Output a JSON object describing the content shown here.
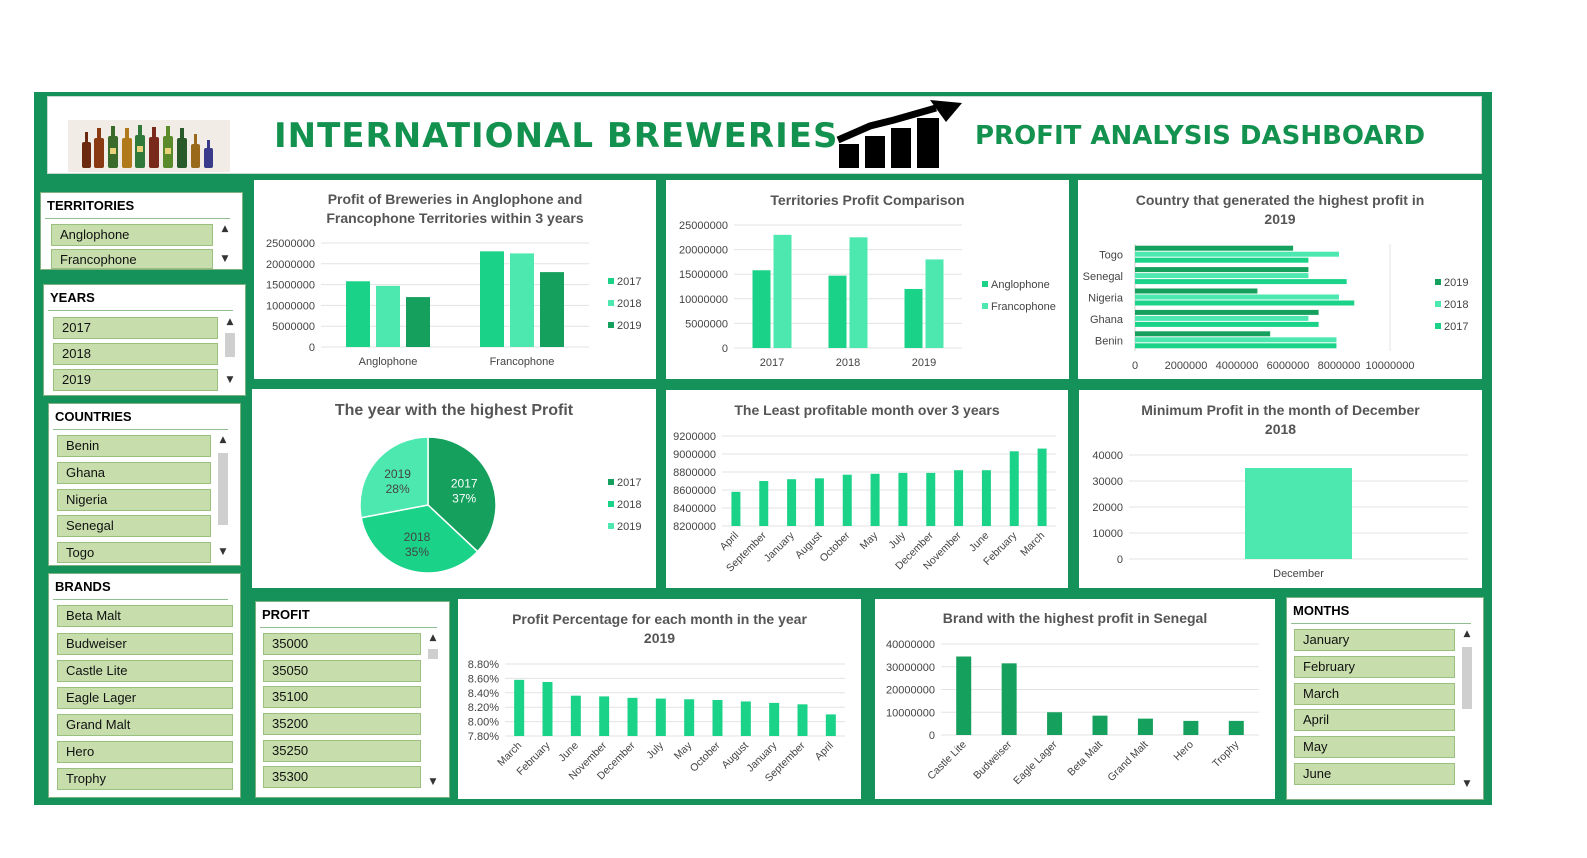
{
  "header": {
    "title": "INTERNATIONAL BREWERIES",
    "subtitle": "PROFIT ANALYSIS DASHBOARD",
    "logo_icon": "beer-bottles-icon",
    "trend_icon": "rising-bar-chart-icon"
  },
  "colors": {
    "frame": "#15925a",
    "title": "#13924f",
    "c2017": "#1bd388",
    "c2018": "#4de8b0",
    "c2019": "#15a05d",
    "slicer_item": "#c7deac"
  },
  "slicers": {
    "territories": {
      "title": "TERRITORIES",
      "items": [
        "Anglophone",
        "Francophone"
      ]
    },
    "years": {
      "title": "YEARS",
      "items": [
        "2017",
        "2018",
        "2019"
      ]
    },
    "countries": {
      "title": "COUNTRIES",
      "items": [
        "Benin",
        "Ghana",
        "Nigeria",
        "Senegal",
        "Togo"
      ]
    },
    "brands": {
      "title": "BRANDS",
      "items": [
        "Beta Malt",
        "Budweiser",
        "Castle Lite",
        "Eagle Lager",
        "Grand Malt",
        "Hero",
        "Trophy"
      ]
    },
    "profit": {
      "title": "PROFIT",
      "items": [
        "35000",
        "35050",
        "35100",
        "35200",
        "35250",
        "35300"
      ]
    },
    "months": {
      "title": "MONTHS",
      "items": [
        "January",
        "February",
        "March",
        "April",
        "May",
        "June"
      ]
    }
  },
  "chart_data": [
    {
      "id": "c1",
      "type": "bar",
      "title": "Profit of Breweries in Anglophone and Francophone Territories within 3 years",
      "categories": [
        "Anglophone",
        "Francophone"
      ],
      "series": [
        {
          "name": "2017",
          "color": "#1bd388",
          "values": [
            15800000,
            23000000
          ]
        },
        {
          "name": "2018",
          "color": "#4de8b0",
          "values": [
            14700000,
            22500000
          ]
        },
        {
          "name": "2019",
          "color": "#15a05d",
          "values": [
            12000000,
            18000000
          ]
        }
      ],
      "yticks": [
        "0",
        "5000000",
        "10000000",
        "15000000",
        "20000000",
        "25000000"
      ],
      "ylim": [
        0,
        25000000
      ],
      "legend": "right",
      "grid": true
    },
    {
      "id": "c2",
      "type": "bar",
      "title": "Territories Profit Comparison",
      "categories": [
        "2017",
        "2018",
        "2019"
      ],
      "series": [
        {
          "name": "Anglophone",
          "color": "#1bd388",
          "values": [
            15800000,
            14700000,
            12000000
          ]
        },
        {
          "name": "Francophone",
          "color": "#4de8b0",
          "values": [
            23000000,
            22500000,
            18000000
          ]
        }
      ],
      "yticks": [
        "0",
        "5000000",
        "10000000",
        "15000000",
        "20000000",
        "25000000"
      ],
      "ylim": [
        0,
        25000000
      ],
      "legend": "right",
      "grid": true
    },
    {
      "id": "c3",
      "type": "bar",
      "orientation": "horizontal",
      "title": "Country that generated the highest profit in 2019",
      "categories": [
        "Benin",
        "Ghana",
        "Nigeria",
        "Senegal",
        "Togo"
      ],
      "series": [
        {
          "name": "2019",
          "color": "#15a05d",
          "values": [
            5300000,
            7200000,
            4800000,
            6800000,
            6200000
          ]
        },
        {
          "name": "2018",
          "color": "#4de8b0",
          "values": [
            7900000,
            6800000,
            8000000,
            6800000,
            8000000
          ]
        },
        {
          "name": "2017",
          "color": "#1bd388",
          "values": [
            7900000,
            7200000,
            8600000,
            8300000,
            6800000
          ]
        }
      ],
      "xticks": [
        "0",
        "2000000",
        "4000000",
        "6000000",
        "8000000",
        "10000000"
      ],
      "xlim": [
        0,
        10000000
      ],
      "legend": "right",
      "grid": true
    },
    {
      "id": "c4",
      "type": "pie",
      "title": "The year with the highest Profit",
      "slices": [
        {
          "label": "2017",
          "pct": "37%",
          "value": 37,
          "color": "#15a05d"
        },
        {
          "label": "2018",
          "pct": "35%",
          "value": 35,
          "color": "#1bd388"
        },
        {
          "label": "2019",
          "pct": "28%",
          "value": 28,
          "color": "#4de8b0"
        }
      ],
      "legend": "right"
    },
    {
      "id": "c5",
      "type": "bar",
      "title": "The Least profitable month over 3 years",
      "categories": [
        "April",
        "September",
        "January",
        "August",
        "October",
        "May",
        "July",
        "December",
        "November",
        "June",
        "February",
        "March"
      ],
      "values": [
        8580000,
        8700000,
        8720000,
        8730000,
        8770000,
        8780000,
        8790000,
        8790000,
        8820000,
        8820000,
        9030000,
        9060000
      ],
      "color": "#1bd388",
      "yticks": [
        "8200000",
        "8400000",
        "8600000",
        "8800000",
        "9000000",
        "9200000"
      ],
      "ylim": [
        8200000,
        9200000
      ],
      "grid": true
    },
    {
      "id": "c6",
      "type": "bar",
      "title": "Minimum Profit in the month of December 2018",
      "categories": [
        "December"
      ],
      "values": [
        35000
      ],
      "color": "#4de8b0",
      "yticks": [
        "0",
        "10000",
        "20000",
        "30000",
        "40000"
      ],
      "ylim": [
        0,
        40000
      ],
      "grid": true
    },
    {
      "id": "c7",
      "type": "bar",
      "title": "Profit Percentage for each month in the year 2019",
      "categories": [
        "March",
        "February",
        "June",
        "November",
        "December",
        "July",
        "May",
        "October",
        "August",
        "January",
        "September",
        "April"
      ],
      "values": [
        8.58,
        8.55,
        8.36,
        8.35,
        8.33,
        8.32,
        8.31,
        8.3,
        8.28,
        8.26,
        8.24,
        8.1
      ],
      "color": "#1bd388",
      "yticks": [
        "7.80%",
        "8.00%",
        "8.20%",
        "8.40%",
        "8.60%",
        "8.80%"
      ],
      "ylim": [
        7.8,
        8.8
      ],
      "grid": true
    },
    {
      "id": "c8",
      "type": "bar",
      "title": "Brand with the highest profit in Senegal",
      "categories": [
        "Castle Lite",
        "Budweiser",
        "Eagle Lager",
        "Beta Malt",
        "Grand Malt",
        "Hero",
        "Trophy"
      ],
      "values": [
        34500000,
        31500000,
        10000000,
        8500000,
        7200000,
        6200000,
        6200000
      ],
      "color": "#15a05d",
      "yticks": [
        "0",
        "10000000",
        "20000000",
        "30000000",
        "40000000"
      ],
      "ylim": [
        0,
        40000000
      ],
      "grid": true
    }
  ]
}
